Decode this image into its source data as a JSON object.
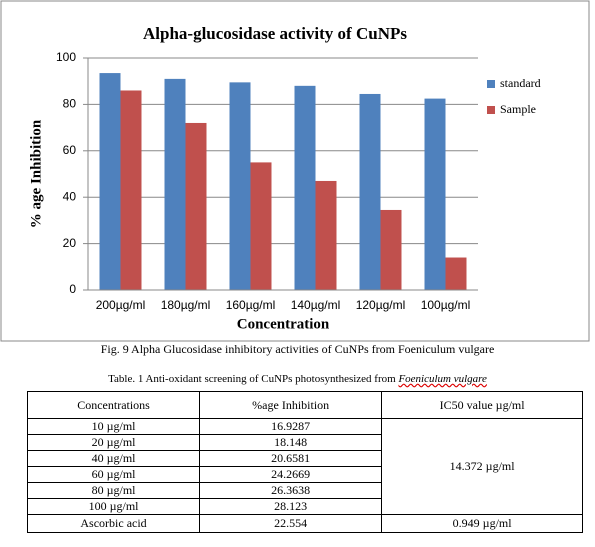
{
  "chart_data": {
    "type": "bar",
    "title": "Alpha-glucosidase activity of CuNPs",
    "y_label": "% age Inhibition",
    "x_label": "Concentration",
    "categories": [
      "200µg/ml",
      "180µg/ml",
      "160µg/ml",
      "140µg/ml",
      "120µg/ml",
      "100µg/ml"
    ],
    "series": [
      {
        "name": "standard",
        "color": "#4f81bd",
        "values": [
          93.5,
          91,
          89.5,
          88,
          84.5,
          82.5
        ]
      },
      {
        "name": "Sample",
        "color": "#c0504d",
        "values": [
          86,
          72,
          55,
          47,
          34.5,
          14
        ]
      }
    ],
    "ylim": [
      0,
      100
    ],
    "yticks": [
      0,
      20,
      40,
      60,
      80,
      100
    ],
    "grid": true,
    "legend": "right"
  },
  "figure_caption": "Fig. 9 Alpha Glucosidase inhibitory activities of CuNPs from Foeniculum vulgare",
  "table_caption": {
    "text": "Table. 1 Anti-oxidant screening of CuNPs photosynthesized from",
    "italic": "Foeniculum vulgare"
  },
  "table": {
    "header": [
      "Concentrations",
      "%age Inhibition",
      "IC50 value µg/ml"
    ],
    "rows": [
      [
        "10 µg/ml",
        "16.9287",
        "14.372 µg/ml"
      ],
      [
        "20 µg/ml",
        "18.148"
      ],
      [
        "40 µg/ml",
        "20.6581"
      ],
      [
        "60 µg/ml",
        "24.2669"
      ],
      [
        "80 µg/ml",
        "26.3638"
      ],
      [
        "100 µg/ml",
        "28.123"
      ],
      [
        "Ascorbic acid",
        "22.554",
        "0.949 µg/ml"
      ]
    ]
  }
}
